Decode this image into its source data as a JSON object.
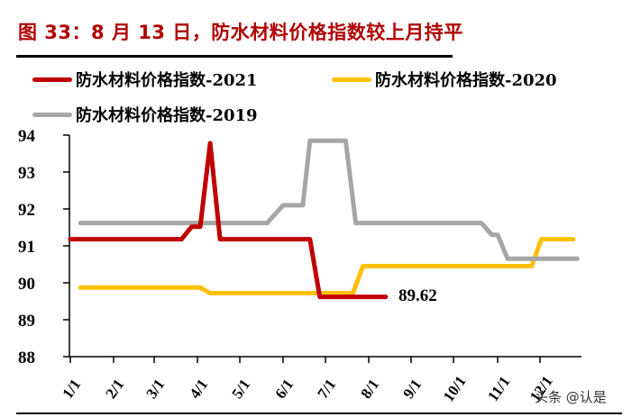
{
  "title": "图 33：8 月 13 日，防水材料价格指数较上月持平",
  "legend": [
    {
      "label": "防水材料价格指数-2021",
      "color": "#c00000"
    },
    {
      "label": "防水材料价格指数-2020",
      "color": "#ffc000"
    },
    {
      "label": "防水材料价格指数-2019",
      "color": "#a6a6a6"
    }
  ],
  "annotation": "89.62",
  "watermark": "头条 @认是",
  "chart_data": {
    "type": "line",
    "title": "图 33：8 月 13 日，防水材料价格指数较上月持平",
    "xlabel": "",
    "ylabel": "",
    "ylim": [
      88,
      94
    ],
    "yticks": [
      88,
      89,
      90,
      91,
      92,
      93,
      94
    ],
    "xticks": [
      "1/1",
      "2/1",
      "3/1",
      "4/1",
      "5/1",
      "6/1",
      "7/1",
      "8/1",
      "9/1",
      "10/1",
      "11/1",
      "12/1"
    ],
    "grid": false,
    "legend_position": "top",
    "annotations": [
      {
        "text": "89.62",
        "x": "8/13",
        "y": 89.62
      }
    ],
    "series": [
      {
        "name": "防水材料价格指数-2021",
        "color": "#c00000",
        "points": [
          [
            "1/1",
            91.18
          ],
          [
            "3/20",
            91.18
          ],
          [
            "3/27",
            91.52
          ],
          [
            "4/3",
            91.52
          ],
          [
            "4/10",
            93.78
          ],
          [
            "4/17",
            91.18
          ],
          [
            "6/20",
            91.18
          ],
          [
            "6/27",
            89.62
          ],
          [
            "7/15",
            89.62
          ],
          [
            "8/13",
            89.62
          ]
        ]
      },
      {
        "name": "防水材料价格指数-2020",
        "color": "#ffc000",
        "points": [
          [
            "1/8",
            89.87
          ],
          [
            "4/3",
            89.87
          ],
          [
            "4/10",
            89.72
          ],
          [
            "7/20",
            89.72
          ],
          [
            "7/27",
            90.45
          ],
          [
            "11/25",
            90.45
          ],
          [
            "12/2",
            91.18
          ],
          [
            "12/25",
            91.18
          ]
        ]
      },
      {
        "name": "防水材料价格指数-2019",
        "color": "#a6a6a6",
        "points": [
          [
            "1/8",
            91.62
          ],
          [
            "5/20",
            91.62
          ],
          [
            "6/1",
            92.1
          ],
          [
            "6/15",
            92.1
          ],
          [
            "6/20",
            93.85
          ],
          [
            "7/15",
            93.85
          ],
          [
            "7/22",
            91.62
          ],
          [
            "10/20",
            91.62
          ],
          [
            "10/27",
            91.3
          ],
          [
            "11/1",
            91.3
          ],
          [
            "11/8",
            90.65
          ],
          [
            "12/28",
            90.65
          ]
        ]
      }
    ]
  }
}
